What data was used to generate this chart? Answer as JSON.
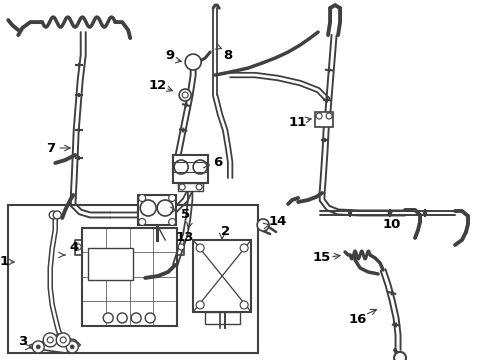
{
  "background_color": "#ffffff",
  "line_color": "#404040",
  "fig_width": 4.89,
  "fig_height": 3.6,
  "dpi": 100
}
